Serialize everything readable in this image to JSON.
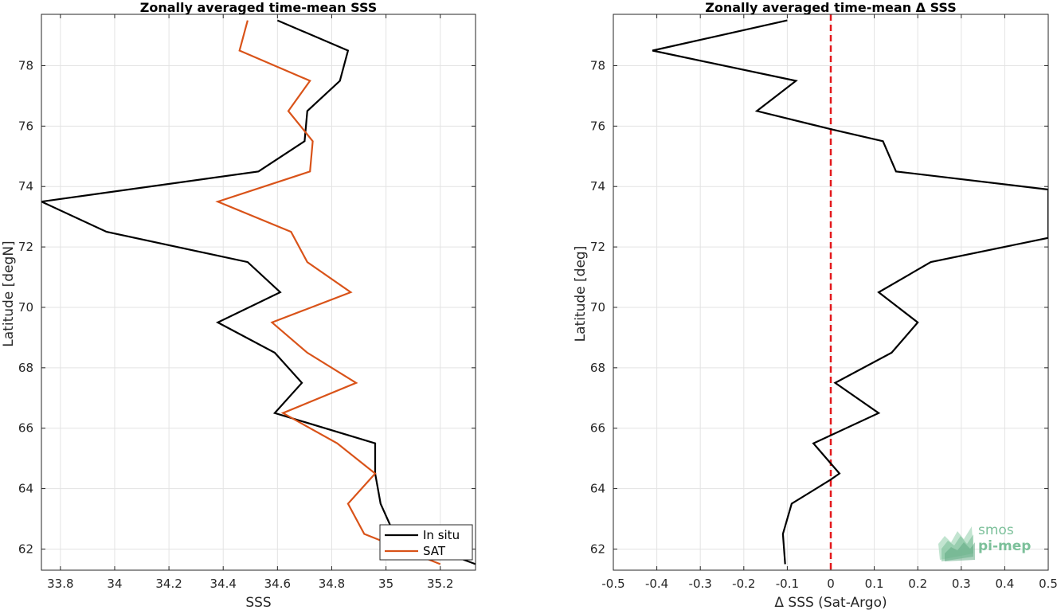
{
  "chart_data": [
    {
      "type": "line",
      "title": "Zonally averaged time-mean SSS",
      "xlabel": "SSS",
      "ylabel": "Latitude [degN]",
      "xlim": [
        33.73,
        35.33
      ],
      "ylim": [
        61.3,
        79.7
      ],
      "xticks": [
        "33.8",
        "34",
        "34.2",
        "34.4",
        "34.6",
        "34.8",
        "35",
        "35.2"
      ],
      "yticks": [
        "62",
        "64",
        "66",
        "68",
        "70",
        "72",
        "74",
        "76",
        "78"
      ],
      "grid": true,
      "legend": "bottom-right",
      "series": [
        {
          "name": "In situ",
          "color": "#000000",
          "points": [
            [
              34.6,
              79.5
            ],
            [
              34.86,
              78.5
            ],
            [
              34.83,
              77.5
            ],
            [
              34.71,
              76.5
            ],
            [
              34.7,
              75.5
            ],
            [
              34.53,
              74.5
            ],
            [
              33.73,
              73.5
            ],
            [
              33.97,
              72.5
            ],
            [
              34.49,
              71.5
            ],
            [
              34.61,
              70.5
            ],
            [
              34.38,
              69.5
            ],
            [
              34.59,
              68.5
            ],
            [
              34.69,
              67.5
            ],
            [
              34.59,
              66.5
            ],
            [
              34.96,
              65.5
            ],
            [
              34.96,
              64.5
            ],
            [
              34.98,
              63.5
            ],
            [
              35.03,
              62.5
            ],
            [
              35.33,
              61.5
            ]
          ]
        },
        {
          "name": "SAT",
          "color": "#d95319",
          "points": [
            [
              34.49,
              79.5
            ],
            [
              34.46,
              78.5
            ],
            [
              34.72,
              77.5
            ],
            [
              34.64,
              76.5
            ],
            [
              34.73,
              75.5
            ],
            [
              34.72,
              74.5
            ],
            [
              34.38,
              73.5
            ],
            [
              34.65,
              72.5
            ],
            [
              34.71,
              71.5
            ],
            [
              34.87,
              70.5
            ],
            [
              34.58,
              69.5
            ],
            [
              34.71,
              68.5
            ],
            [
              34.89,
              67.5
            ],
            [
              34.62,
              66.5
            ],
            [
              34.82,
              65.5
            ],
            [
              34.96,
              64.5
            ],
            [
              34.86,
              63.5
            ],
            [
              34.92,
              62.5
            ],
            [
              35.2,
              61.5
            ]
          ]
        }
      ]
    },
    {
      "type": "line",
      "title": "Zonally averaged time-mean Δ SSS",
      "xlabel": "Δ SSS (Sat-Argo)",
      "ylabel": "Latitude [deg]",
      "xlim": [
        -0.5,
        0.5
      ],
      "ylim": [
        61.3,
        79.7
      ],
      "xticks": [
        "-0.5",
        "-0.4",
        "-0.3",
        "-0.2",
        "-0.1",
        "0",
        "0.1",
        "0.2",
        "0.3",
        "0.4",
        "0.5"
      ],
      "yticks": [
        "62",
        "64",
        "66",
        "68",
        "70",
        "72",
        "74",
        "76",
        "78"
      ],
      "grid": true,
      "reference_line": {
        "x": 0,
        "color": "#e3191c",
        "style": "dashed"
      },
      "series": [
        {
          "color": "#000000",
          "points": [
            [
              -0.1,
              79.5
            ],
            [
              -0.41,
              78.5
            ],
            [
              -0.08,
              77.5
            ],
            [
              -0.17,
              76.5
            ],
            [
              0.0,
              75.9
            ],
            [
              0.12,
              75.5
            ],
            [
              0.15,
              74.5
            ],
            [
              0.5,
              73.9
            ],
            [
              0.5,
              72.3
            ],
            [
              0.23,
              71.5
            ],
            [
              0.11,
              70.5
            ],
            [
              0.2,
              69.5
            ],
            [
              0.14,
              68.5
            ],
            [
              0.01,
              67.5
            ],
            [
              0.11,
              66.5
            ],
            [
              -0.04,
              65.5
            ],
            [
              0.02,
              64.5
            ],
            [
              0.0,
              64.3
            ],
            [
              -0.09,
              63.5
            ],
            [
              -0.11,
              62.5
            ],
            [
              -0.105,
              61.5
            ]
          ]
        }
      ]
    }
  ],
  "logo": {
    "line1": "smos",
    "line2": "pi-mep",
    "color": "#7cc09a"
  }
}
